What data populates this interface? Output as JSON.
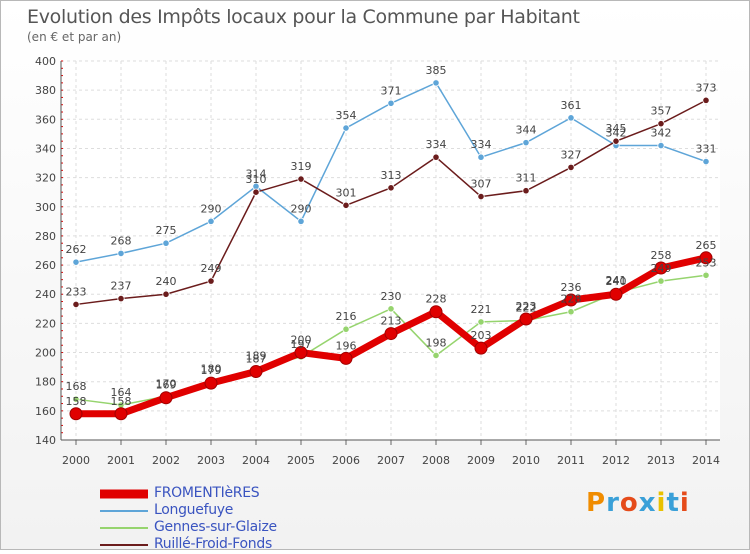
{
  "header": {
    "title": "Evolution des Impôts locaux pour la Commune par Habitant",
    "subtitle": "(en € et par an)"
  },
  "logo": {
    "text": "Proxiti",
    "colors": [
      "#f08c00",
      "#3aa0d8",
      "#e54b1a",
      "#3aa0d8",
      "#e9c100",
      "#3aa0d8",
      "#e54b1a"
    ]
  },
  "chart_data": {
    "type": "line",
    "title": "Evolution des Impôts locaux pour la Commune par Habitant",
    "subtitle": "(en € et par an)",
    "xlabel": "",
    "ylabel": "",
    "x": [
      "2000",
      "2001",
      "2002",
      "2003",
      "2004",
      "2005",
      "2006",
      "2007",
      "2008",
      "2009",
      "2010",
      "2011",
      "2012",
      "2013",
      "2014"
    ],
    "ylim": [
      140,
      400
    ],
    "yticks": [
      140,
      160,
      180,
      200,
      220,
      240,
      260,
      280,
      300,
      320,
      340,
      360,
      380,
      400
    ],
    "grid": true,
    "legend_position": "bottom-left",
    "series": [
      {
        "name": "FROMENTIèRES",
        "color": "#e00000",
        "thick": true,
        "values": [
          158,
          158,
          169,
          179,
          187,
          200,
          196,
          213,
          228,
          203,
          223,
          236,
          240,
          258,
          265
        ]
      },
      {
        "name": "Longuefuye",
        "color": "#5ea5d8",
        "thick": false,
        "values": [
          262,
          268,
          275,
          290,
          314,
          290,
          354,
          371,
          385,
          334,
          344,
          361,
          342,
          342,
          331
        ]
      },
      {
        "name": "Gennes-sur-Glaize",
        "color": "#96d46e",
        "thick": false,
        "values": [
          168,
          164,
          170,
          180,
          189,
          197,
          216,
          230,
          198,
          221,
          222,
          228,
          241,
          249,
          253
        ]
      },
      {
        "name": "Ruillé-Froid-Fonds",
        "color": "#6b1c1c",
        "thick": false,
        "values": [
          233,
          237,
          240,
          249,
          310,
          319,
          301,
          313,
          334,
          307,
          311,
          327,
          345,
          357,
          373
        ]
      }
    ]
  }
}
